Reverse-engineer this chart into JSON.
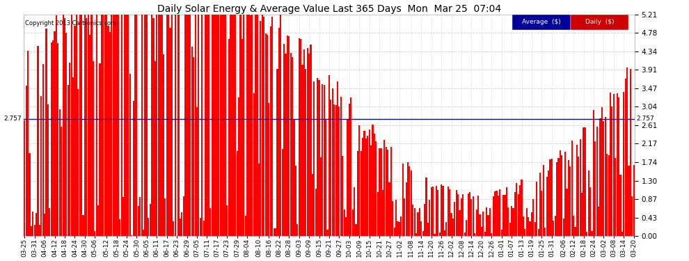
{
  "title": "Daily Solar Energy & Average Value Last 365 Days  Mon  Mar 25  07:04",
  "copyright": "Copyright 2013 Cartronics.com",
  "bar_color": "#FF0000",
  "bg_color": "#FFFFFF",
  "grid_color": "#CCCCCC",
  "average_value": 2.757,
  "average_color": "#0000BB",
  "ylim": [
    0.0,
    5.21
  ],
  "yticks": [
    0.0,
    0.43,
    0.87,
    1.3,
    1.74,
    2.17,
    2.61,
    3.04,
    3.47,
    3.91,
    4.34,
    4.78,
    5.21
  ],
  "legend_avg_color": "#000099",
  "legend_daily_color": "#CC0000",
  "x_labels": [
    "03-25",
    "03-31",
    "04-06",
    "04-12",
    "04-18",
    "04-24",
    "04-30",
    "05-06",
    "05-12",
    "05-18",
    "05-24",
    "05-30",
    "06-05",
    "06-11",
    "06-17",
    "06-23",
    "06-29",
    "07-05",
    "07-11",
    "07-17",
    "07-23",
    "07-29",
    "08-04",
    "08-10",
    "08-16",
    "08-22",
    "08-28",
    "09-03",
    "09-09",
    "09-15",
    "09-21",
    "09-27",
    "10-03",
    "10-09",
    "10-15",
    "10-21",
    "10-27",
    "11-02",
    "11-08",
    "11-14",
    "11-20",
    "11-26",
    "12-02",
    "12-08",
    "12-14",
    "12-20",
    "12-26",
    "01-01",
    "01-07",
    "01-13",
    "01-19",
    "01-25",
    "01-31",
    "02-06",
    "02-12",
    "02-18",
    "02-24",
    "03-02",
    "03-08",
    "03-14",
    "03-20"
  ],
  "num_bars": 365,
  "seed": 42
}
